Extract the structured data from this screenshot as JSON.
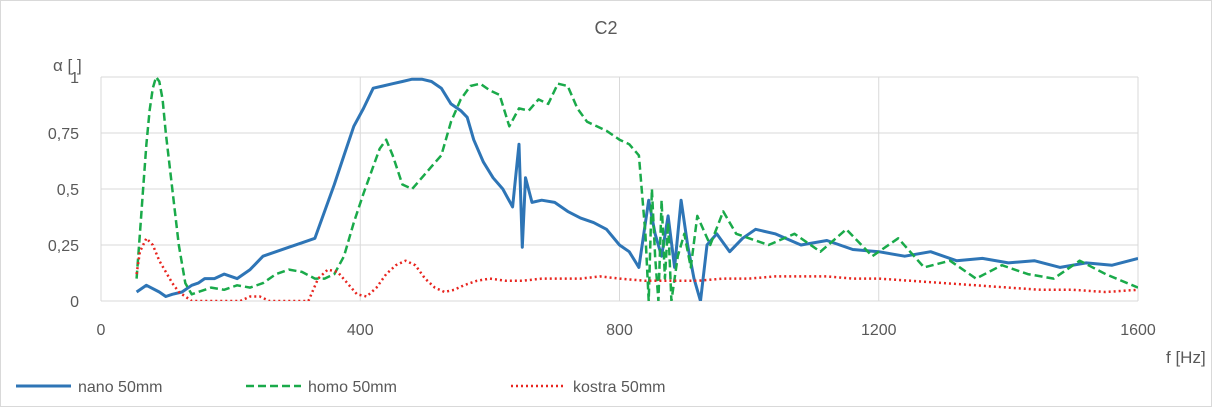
{
  "chart_data": {
    "type": "line",
    "title": "C2",
    "xlabel": "f [Hz]",
    "ylabel": "α [ ]",
    "xlim": [
      0,
      1600
    ],
    "ylim": [
      0,
      1
    ],
    "x_ticks": [
      0,
      400,
      800,
      1200,
      1600
    ],
    "x_tick_labels": [
      "0",
      "400",
      "800",
      "1200",
      "1600"
    ],
    "y_ticks": [
      0,
      0.25,
      0.5,
      0.75,
      1
    ],
    "y_tick_labels": [
      "0",
      "0,25",
      "0,5",
      "0,75",
      "1"
    ],
    "grid": true,
    "legend_position": "bottom",
    "series": [
      {
        "name": "nano 50mm",
        "color": "#2e75b6",
        "style": "solid",
        "x": [
          55,
          70,
          90,
          100,
          110,
          125,
          140,
          150,
          160,
          175,
          190,
          210,
          230,
          250,
          270,
          290,
          310,
          330,
          345,
          360,
          375,
          390,
          405,
          420,
          435,
          450,
          465,
          480,
          495,
          510,
          525,
          540,
          555,
          565,
          575,
          590,
          605,
          620,
          635,
          645,
          650,
          655,
          665,
          680,
          700,
          720,
          740,
          760,
          780,
          800,
          815,
          830,
          845,
          855,
          865,
          875,
          885,
          895,
          905,
          915,
          925,
          935,
          950,
          970,
          990,
          1010,
          1040,
          1080,
          1120,
          1160,
          1200,
          1240,
          1280,
          1320,
          1360,
          1400,
          1440,
          1480,
          1520,
          1560,
          1600
        ],
        "y": [
          0.04,
          0.07,
          0.04,
          0.02,
          0.03,
          0.04,
          0.07,
          0.08,
          0.1,
          0.1,
          0.12,
          0.1,
          0.14,
          0.2,
          0.22,
          0.24,
          0.26,
          0.28,
          0.4,
          0.52,
          0.65,
          0.78,
          0.86,
          0.95,
          0.96,
          0.97,
          0.98,
          0.99,
          0.99,
          0.98,
          0.95,
          0.88,
          0.85,
          0.82,
          0.72,
          0.62,
          0.55,
          0.5,
          0.42,
          0.7,
          0.24,
          0.55,
          0.44,
          0.45,
          0.44,
          0.4,
          0.37,
          0.35,
          0.32,
          0.25,
          0.22,
          0.15,
          0.45,
          0.3,
          0.2,
          0.38,
          0.15,
          0.45,
          0.25,
          0.1,
          0.0,
          0.25,
          0.3,
          0.22,
          0.28,
          0.32,
          0.3,
          0.25,
          0.27,
          0.23,
          0.22,
          0.2,
          0.22,
          0.18,
          0.19,
          0.17,
          0.18,
          0.15,
          0.17,
          0.16,
          0.19
        ]
      },
      {
        "name": "homo 50mm",
        "color": "#1aaa4a",
        "style": "dashed",
        "x": [
          55,
          60,
          65,
          70,
          75,
          80,
          85,
          90,
          95,
          100,
          110,
          120,
          130,
          140,
          150,
          170,
          190,
          210,
          230,
          250,
          270,
          290,
          310,
          330,
          345,
          360,
          375,
          390,
          405,
          420,
          430,
          440,
          450,
          465,
          480,
          495,
          510,
          525,
          540,
          555,
          570,
          585,
          600,
          615,
          630,
          645,
          660,
          675,
          690,
          705,
          720,
          735,
          750,
          765,
          780,
          800,
          815,
          830,
          840,
          845,
          850,
          855,
          860,
          865,
          870,
          875,
          880,
          890,
          900,
          910,
          920,
          940,
          960,
          980,
          1000,
          1030,
          1070,
          1110,
          1150,
          1190,
          1230,
          1270,
          1310,
          1350,
          1390,
          1430,
          1470,
          1510,
          1550,
          1600
        ],
        "y": [
          0.1,
          0.3,
          0.5,
          0.7,
          0.85,
          0.95,
          1.0,
          0.98,
          0.9,
          0.75,
          0.5,
          0.25,
          0.08,
          0.03,
          0.04,
          0.06,
          0.05,
          0.07,
          0.06,
          0.08,
          0.12,
          0.14,
          0.13,
          0.1,
          0.1,
          0.12,
          0.2,
          0.35,
          0.48,
          0.6,
          0.68,
          0.72,
          0.65,
          0.52,
          0.5,
          0.55,
          0.6,
          0.65,
          0.8,
          0.9,
          0.96,
          0.97,
          0.94,
          0.92,
          0.78,
          0.86,
          0.85,
          0.9,
          0.88,
          0.97,
          0.96,
          0.86,
          0.8,
          0.78,
          0.76,
          0.72,
          0.7,
          0.65,
          0.3,
          0.0,
          0.5,
          0.2,
          0.0,
          0.45,
          0.1,
          0.35,
          0.0,
          0.2,
          0.3,
          0.15,
          0.38,
          0.25,
          0.4,
          0.3,
          0.28,
          0.25,
          0.3,
          0.22,
          0.32,
          0.2,
          0.28,
          0.15,
          0.18,
          0.1,
          0.16,
          0.12,
          0.1,
          0.18,
          0.12,
          0.06
        ]
      },
      {
        "name": "kostra 50mm",
        "color": "#e8251f",
        "style": "dotted",
        "x": [
          55,
          60,
          70,
          80,
          90,
          100,
          110,
          120,
          130,
          140,
          150,
          165,
          180,
          200,
          215,
          230,
          245,
          260,
          275,
          290,
          305,
          320,
          335,
          350,
          365,
          380,
          395,
          410,
          425,
          440,
          455,
          470,
          485,
          500,
          515,
          530,
          545,
          560,
          580,
          600,
          625,
          650,
          680,
          710,
          740,
          770,
          800,
          840,
          880,
          920,
          960,
          1000,
          1040,
          1080,
          1120,
          1160,
          1200,
          1250,
          1300,
          1350,
          1400,
          1450,
          1500,
          1550,
          1600
        ],
        "y": [
          0.12,
          0.22,
          0.28,
          0.25,
          0.18,
          0.13,
          0.08,
          0.04,
          0.02,
          0.0,
          0.0,
          0.0,
          0.0,
          0.0,
          0.0,
          0.02,
          0.02,
          0.0,
          0.0,
          0.0,
          0.0,
          0.0,
          0.1,
          0.14,
          0.13,
          0.08,
          0.03,
          0.02,
          0.06,
          0.12,
          0.16,
          0.18,
          0.16,
          0.1,
          0.06,
          0.04,
          0.05,
          0.07,
          0.09,
          0.1,
          0.09,
          0.09,
          0.1,
          0.1,
          0.1,
          0.11,
          0.1,
          0.09,
          0.09,
          0.09,
          0.1,
          0.1,
          0.11,
          0.11,
          0.11,
          0.1,
          0.1,
          0.09,
          0.08,
          0.07,
          0.06,
          0.05,
          0.05,
          0.04,
          0.05
        ]
      }
    ]
  }
}
